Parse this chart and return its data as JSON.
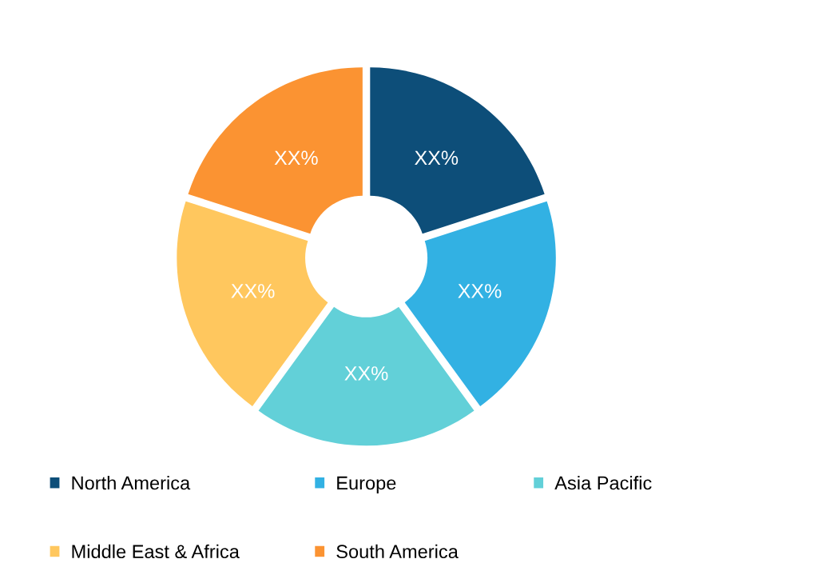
{
  "chart_data": {
    "type": "donut",
    "categories": [
      "North America",
      "Europe",
      "Asia Pacific",
      "Middle East & Africa",
      "South America"
    ],
    "values": [
      20,
      20,
      20,
      20,
      20
    ],
    "colors": [
      "#0d4e79",
      "#32b1e3",
      "#62d0d8",
      "#ffc75e",
      "#fb9332"
    ],
    "value_labels": [
      "XX%",
      "XX%",
      "XX%",
      "XX%",
      "XX%"
    ],
    "legend": "bottom"
  }
}
